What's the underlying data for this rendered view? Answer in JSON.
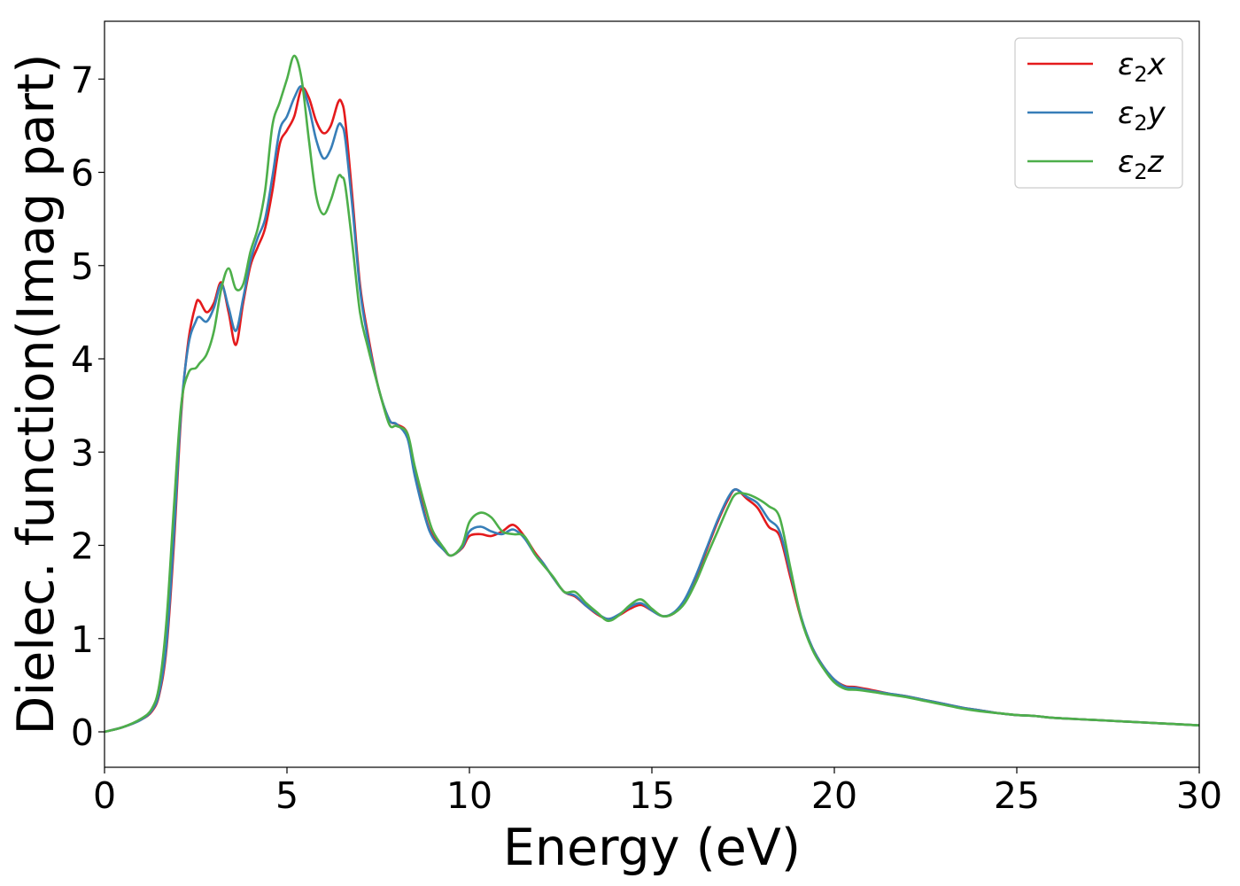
{
  "chart_data": {
    "type": "line",
    "title": "",
    "xlabel": "Energy (eV)",
    "ylabel": "Dielec. function(Imag part)",
    "xlim": [
      0,
      30
    ],
    "ylim": [
      -0.38,
      7.62
    ],
    "xticks": [
      0,
      5,
      10,
      15,
      20,
      25,
      30
    ],
    "yticks": [
      0,
      1,
      2,
      3,
      4,
      5,
      6,
      7
    ],
    "grid": false,
    "legend_position": "top-right",
    "series": [
      {
        "name": "ε₂x",
        "legend": {
          "base": "ε",
          "sub": "2",
          "suffix": "x"
        },
        "color": "#e41a1c",
        "x": [
          0,
          0.5,
          1.0,
          1.3,
          1.5,
          1.7,
          1.9,
          2.1,
          2.3,
          2.5,
          2.6,
          2.8,
          3.0,
          3.2,
          3.4,
          3.6,
          3.8,
          4.0,
          4.2,
          4.4,
          4.6,
          4.8,
          5.0,
          5.2,
          5.4,
          5.6,
          5.8,
          6.0,
          6.2,
          6.4,
          6.5,
          6.6,
          6.8,
          7.0,
          7.2,
          7.5,
          7.8,
          8.0,
          8.3,
          8.5,
          8.8,
          9.0,
          9.3,
          9.5,
          9.8,
          10.0,
          10.3,
          10.6,
          10.9,
          11.2,
          11.5,
          11.8,
          12.0,
          12.3,
          12.6,
          12.9,
          13.2,
          13.5,
          13.8,
          14.1,
          14.4,
          14.7,
          15.0,
          15.3,
          15.6,
          15.9,
          16.2,
          16.5,
          16.8,
          17.1,
          17.3,
          17.6,
          17.9,
          18.2,
          18.5,
          18.8,
          19.1,
          19.4,
          19.7,
          20.0,
          20.3,
          20.6,
          21.0,
          21.5,
          22.0,
          22.5,
          23.0,
          23.5,
          24.0,
          24.5,
          25.0,
          25.5,
          26.0,
          27.0,
          28.0,
          29.0,
          30.0
        ],
        "y": [
          0.0,
          0.05,
          0.13,
          0.22,
          0.4,
          0.9,
          2.0,
          3.4,
          4.2,
          4.58,
          4.62,
          4.5,
          4.6,
          4.82,
          4.5,
          4.15,
          4.6,
          5.0,
          5.2,
          5.4,
          5.8,
          6.3,
          6.45,
          6.6,
          6.9,
          6.8,
          6.55,
          6.42,
          6.5,
          6.75,
          6.75,
          6.55,
          5.7,
          4.8,
          4.3,
          3.7,
          3.35,
          3.3,
          3.2,
          2.8,
          2.3,
          2.1,
          1.95,
          1.89,
          1.97,
          2.1,
          2.12,
          2.1,
          2.15,
          2.22,
          2.1,
          1.92,
          1.82,
          1.65,
          1.5,
          1.45,
          1.35,
          1.26,
          1.21,
          1.25,
          1.32,
          1.36,
          1.3,
          1.24,
          1.27,
          1.4,
          1.65,
          1.95,
          2.25,
          2.5,
          2.6,
          2.5,
          2.4,
          2.2,
          2.1,
          1.65,
          1.2,
          0.9,
          0.7,
          0.56,
          0.49,
          0.48,
          0.45,
          0.41,
          0.38,
          0.34,
          0.3,
          0.26,
          0.23,
          0.2,
          0.18,
          0.17,
          0.15,
          0.13,
          0.11,
          0.09,
          0.07
        ]
      },
      {
        "name": "ε₂y",
        "legend": {
          "base": "ε",
          "sub": "2",
          "suffix": "y"
        },
        "color": "#377eb8",
        "x": [
          0,
          0.5,
          1.0,
          1.3,
          1.5,
          1.7,
          1.9,
          2.1,
          2.3,
          2.5,
          2.6,
          2.8,
          3.0,
          3.2,
          3.4,
          3.6,
          3.8,
          4.0,
          4.2,
          4.4,
          4.6,
          4.8,
          5.0,
          5.2,
          5.4,
          5.6,
          5.8,
          6.0,
          6.2,
          6.4,
          6.5,
          6.6,
          6.8,
          7.0,
          7.2,
          7.5,
          7.8,
          8.0,
          8.3,
          8.5,
          8.8,
          9.0,
          9.3,
          9.5,
          9.8,
          10.0,
          10.3,
          10.6,
          10.9,
          11.2,
          11.5,
          11.8,
          12.0,
          12.3,
          12.6,
          12.9,
          13.2,
          13.5,
          13.8,
          14.1,
          14.4,
          14.7,
          15.0,
          15.3,
          15.6,
          15.9,
          16.2,
          16.5,
          16.8,
          17.1,
          17.3,
          17.6,
          17.9,
          18.2,
          18.5,
          18.8,
          19.1,
          19.4,
          19.7,
          20.0,
          20.3,
          20.6,
          21.0,
          21.5,
          22.0,
          22.5,
          23.0,
          23.5,
          24.0,
          24.5,
          25.0,
          25.5,
          26.0,
          27.0,
          28.0,
          29.0,
          30.0
        ],
        "y": [
          0.0,
          0.05,
          0.13,
          0.23,
          0.42,
          0.95,
          2.1,
          3.45,
          4.15,
          4.4,
          4.45,
          4.4,
          4.55,
          4.8,
          4.55,
          4.3,
          4.65,
          5.05,
          5.3,
          5.5,
          5.95,
          6.45,
          6.6,
          6.8,
          6.92,
          6.7,
          6.35,
          6.15,
          6.25,
          6.5,
          6.5,
          6.35,
          5.6,
          4.75,
          4.25,
          3.7,
          3.35,
          3.3,
          3.15,
          2.75,
          2.28,
          2.08,
          1.95,
          1.89,
          1.98,
          2.15,
          2.2,
          2.15,
          2.12,
          2.17,
          2.08,
          1.9,
          1.82,
          1.65,
          1.5,
          1.46,
          1.35,
          1.27,
          1.21,
          1.26,
          1.34,
          1.38,
          1.3,
          1.24,
          1.28,
          1.42,
          1.67,
          1.97,
          2.27,
          2.52,
          2.6,
          2.52,
          2.45,
          2.28,
          2.15,
          1.7,
          1.22,
          0.9,
          0.7,
          0.56,
          0.48,
          0.47,
          0.44,
          0.41,
          0.38,
          0.34,
          0.3,
          0.26,
          0.23,
          0.2,
          0.18,
          0.17,
          0.15,
          0.13,
          0.11,
          0.09,
          0.07
        ]
      },
      {
        "name": "ε₂z",
        "legend": {
          "base": "ε",
          "sub": "2",
          "suffix": "z"
        },
        "color": "#4daf4a",
        "x": [
          0,
          0.5,
          1.0,
          1.3,
          1.5,
          1.7,
          1.9,
          2.1,
          2.3,
          2.5,
          2.6,
          2.8,
          3.0,
          3.2,
          3.4,
          3.6,
          3.8,
          4.0,
          4.2,
          4.4,
          4.6,
          4.8,
          5.0,
          5.2,
          5.4,
          5.6,
          5.8,
          6.0,
          6.2,
          6.4,
          6.5,
          6.6,
          6.8,
          7.0,
          7.2,
          7.5,
          7.8,
          8.0,
          8.3,
          8.5,
          8.8,
          9.0,
          9.3,
          9.5,
          9.8,
          10.0,
          10.3,
          10.6,
          10.9,
          11.2,
          11.5,
          11.8,
          12.0,
          12.3,
          12.6,
          12.9,
          13.2,
          13.5,
          13.8,
          14.1,
          14.4,
          14.7,
          15.0,
          15.3,
          15.6,
          15.9,
          16.2,
          16.5,
          16.8,
          17.1,
          17.3,
          17.6,
          17.9,
          18.2,
          18.5,
          18.8,
          19.1,
          19.4,
          19.7,
          20.0,
          20.3,
          20.6,
          21.0,
          21.5,
          22.0,
          22.5,
          23.0,
          23.5,
          24.0,
          24.5,
          25.0,
          25.5,
          26.0,
          27.0,
          28.0,
          29.0,
          30.0
        ],
        "y": [
          0.0,
          0.05,
          0.14,
          0.25,
          0.5,
          1.2,
          2.4,
          3.5,
          3.85,
          3.9,
          3.95,
          4.05,
          4.3,
          4.75,
          4.97,
          4.75,
          4.8,
          5.15,
          5.4,
          5.8,
          6.5,
          6.75,
          7.0,
          7.25,
          7.0,
          6.35,
          5.75,
          5.55,
          5.7,
          5.95,
          5.95,
          5.85,
          5.2,
          4.5,
          4.15,
          3.7,
          3.3,
          3.28,
          3.2,
          2.85,
          2.4,
          2.15,
          1.97,
          1.89,
          2.0,
          2.25,
          2.35,
          2.3,
          2.15,
          2.12,
          2.1,
          1.9,
          1.8,
          1.66,
          1.5,
          1.5,
          1.38,
          1.28,
          1.19,
          1.25,
          1.36,
          1.42,
          1.32,
          1.24,
          1.27,
          1.38,
          1.6,
          1.88,
          2.15,
          2.42,
          2.55,
          2.55,
          2.5,
          2.42,
          2.3,
          1.75,
          1.2,
          0.88,
          0.68,
          0.53,
          0.46,
          0.45,
          0.43,
          0.4,
          0.37,
          0.33,
          0.29,
          0.25,
          0.22,
          0.2,
          0.18,
          0.17,
          0.15,
          0.13,
          0.11,
          0.09,
          0.07
        ]
      }
    ]
  }
}
